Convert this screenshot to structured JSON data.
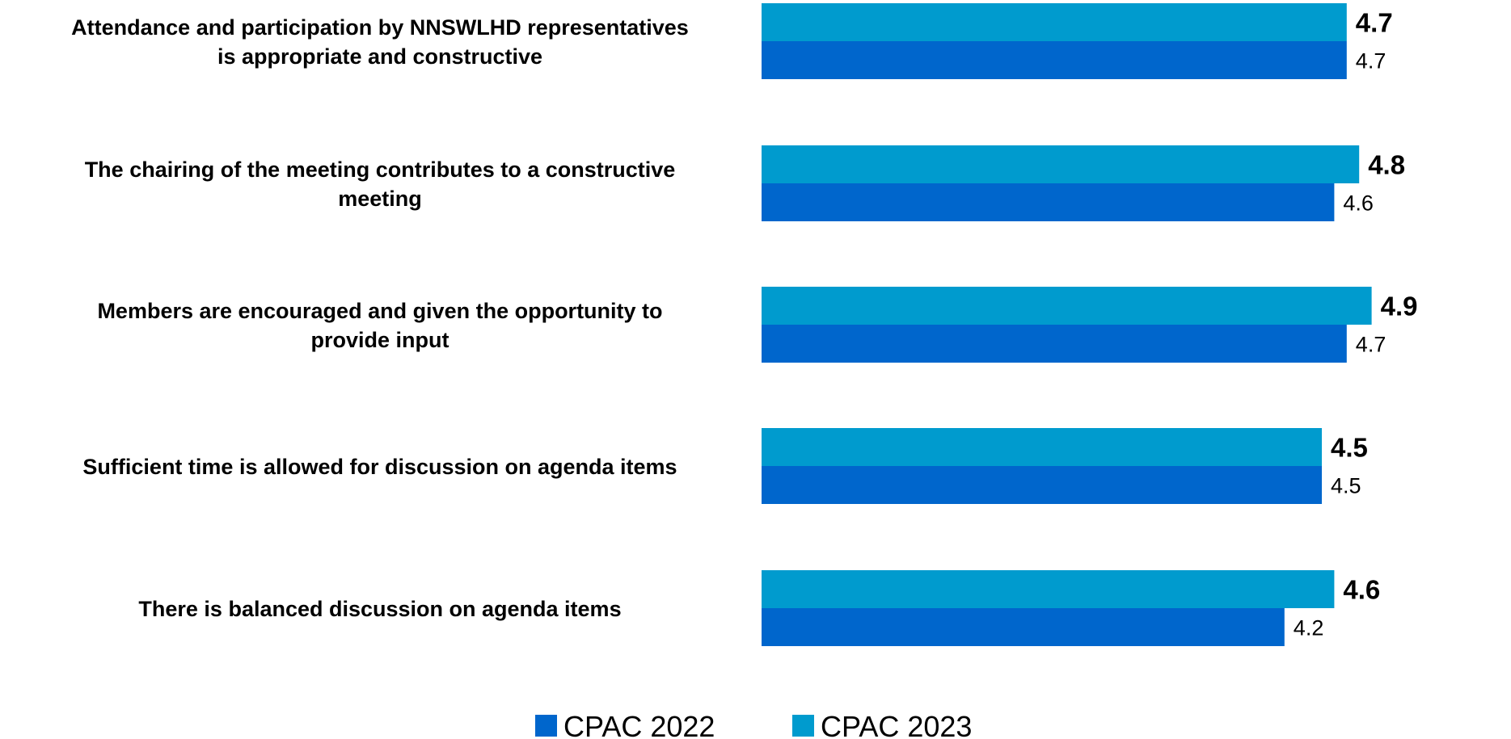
{
  "chart_data": {
    "type": "bar",
    "orientation": "horizontal",
    "categories": [
      [
        "Attendance and participation by NNSWLHD representatives",
        "is appropriate and constructive"
      ],
      [
        "The chairing of the meeting contributes to a constructive",
        "meeting"
      ],
      [
        "Members are encouraged and given the opportunity to",
        "provide input"
      ],
      [
        "Sufficient time is allowed for discussion on agenda items"
      ],
      [
        "There is balanced discussion on agenda items"
      ]
    ],
    "series": [
      {
        "name": "CPAC 2023",
        "values": [
          4.7,
          4.8,
          4.9,
          4.5,
          4.6
        ],
        "color": "#009BCE",
        "label_style": "bold"
      },
      {
        "name": "CPAC 2022",
        "values": [
          4.7,
          4.6,
          4.7,
          4.5,
          4.2
        ],
        "color": "#0066CC",
        "label_style": "regular"
      }
    ],
    "legend": {
      "position": "bottom",
      "order": [
        "CPAC 2022",
        "CPAC 2023"
      ]
    },
    "xlim": [
      0,
      5
    ],
    "grid": false,
    "title": "",
    "xlabel": "",
    "ylabel": ""
  }
}
